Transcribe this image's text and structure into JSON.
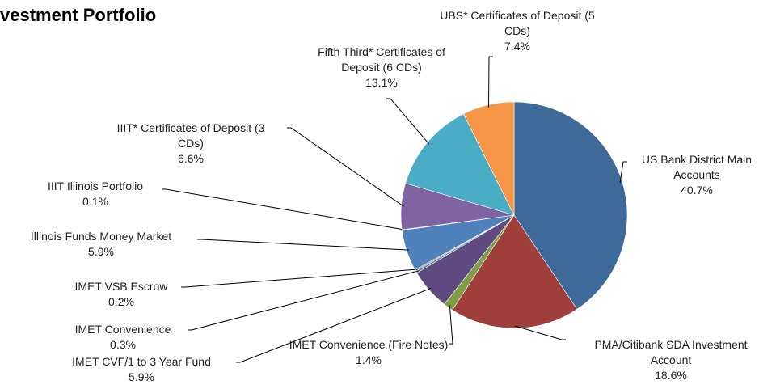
{
  "chart_data": {
    "type": "pie",
    "title": "vestment Portfolio",
    "categories": [
      "US Bank District Main Accounts",
      "PMA/Citibank SDA Investment Account",
      "IMET Convenience (Fire Notes)",
      "IMET CVF/1 to 3 Year Fund",
      "IMET Convenience",
      "IMET VSB Escrow",
      "Illinois Funds  Money Market",
      "IIIT Illinois Portfolio",
      "IIIT* Certificates of Deposit (3 CDs)",
      "Fifth Third* Certificates of Deposit (6 CDs)",
      "UBS* Certificates of Deposit (5 CDs)"
    ],
    "values": [
      40.7,
      18.6,
      1.4,
      5.9,
      0.3,
      0.2,
      5.9,
      0.1,
      6.6,
      13.1,
      7.4
    ],
    "value_labels": [
      "40.7%",
      "18.6%",
      "1.4%",
      "5.9%",
      "0.3%",
      "0.2%",
      "5.9%",
      "0.1%",
      "6.6%",
      "13.1%",
      "7.4%"
    ],
    "colors": [
      "#3e6a9a",
      "#9e3f3c",
      "#7e9d44",
      "#5f4b80",
      "#3a8fa8",
      "#d9803a",
      "#4f81bd",
      "#c0504d",
      "#8064a2",
      "#4bacc6",
      "#f79646"
    ]
  }
}
